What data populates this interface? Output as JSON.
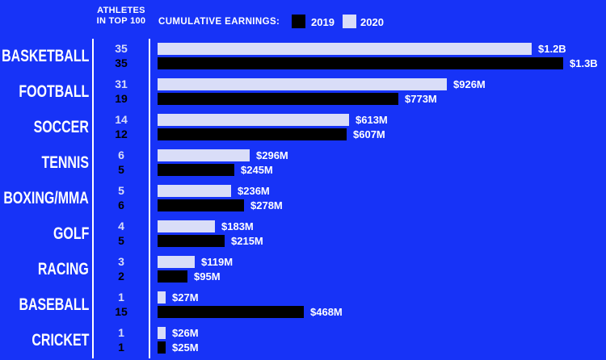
{
  "background_color": "#1733F7",
  "text_color": "#FFFFFF",
  "header": {
    "athletes_line1": "ATHLETES",
    "athletes_line2": "IN TOP 100",
    "earnings_label": "CUMULATIVE EARNINGS:"
  },
  "chart_data": {
    "type": "bar",
    "orientation": "horizontal",
    "title": "CUMULATIVE EARNINGS:",
    "unit": "USD",
    "legend": [
      {
        "label": "2019",
        "color": "#000000"
      },
      {
        "label": "2020",
        "color": "#D9DDF8"
      }
    ],
    "categories": [
      "BASKETBALL",
      "FOOTBALL",
      "SOCCER",
      "TENNIS",
      "BOXING/MMA",
      "GOLF",
      "RACING",
      "BASEBALL",
      "CRICKET"
    ],
    "series": [
      {
        "name": "2020",
        "color": "#D9DDF8",
        "athletes_in_top_100": [
          35,
          31,
          14,
          6,
          5,
          4,
          3,
          1,
          1
        ],
        "earnings_musd": [
          1200,
          926,
          613,
          296,
          236,
          183,
          119,
          27,
          26
        ],
        "labels": [
          "$1.2B",
          "$926M",
          "$613M",
          "$296M",
          "$236M",
          "$183M",
          "$119M",
          "$27M",
          "$26M"
        ]
      },
      {
        "name": "2019",
        "color": "#000000",
        "athletes_in_top_100": [
          35,
          19,
          12,
          5,
          6,
          5,
          2,
          15,
          1
        ],
        "earnings_musd": [
          1300,
          773,
          607,
          245,
          278,
          215,
          95,
          468,
          25
        ],
        "labels": [
          "$1.3B",
          "$773M",
          "$607M",
          "$245M",
          "$278M",
          "$215M",
          "$95M",
          "$468M",
          "$25M"
        ]
      }
    ],
    "x_max_musd": 1300,
    "axis_color": "#FFFFFF",
    "grid": false,
    "legend_position": "top"
  }
}
